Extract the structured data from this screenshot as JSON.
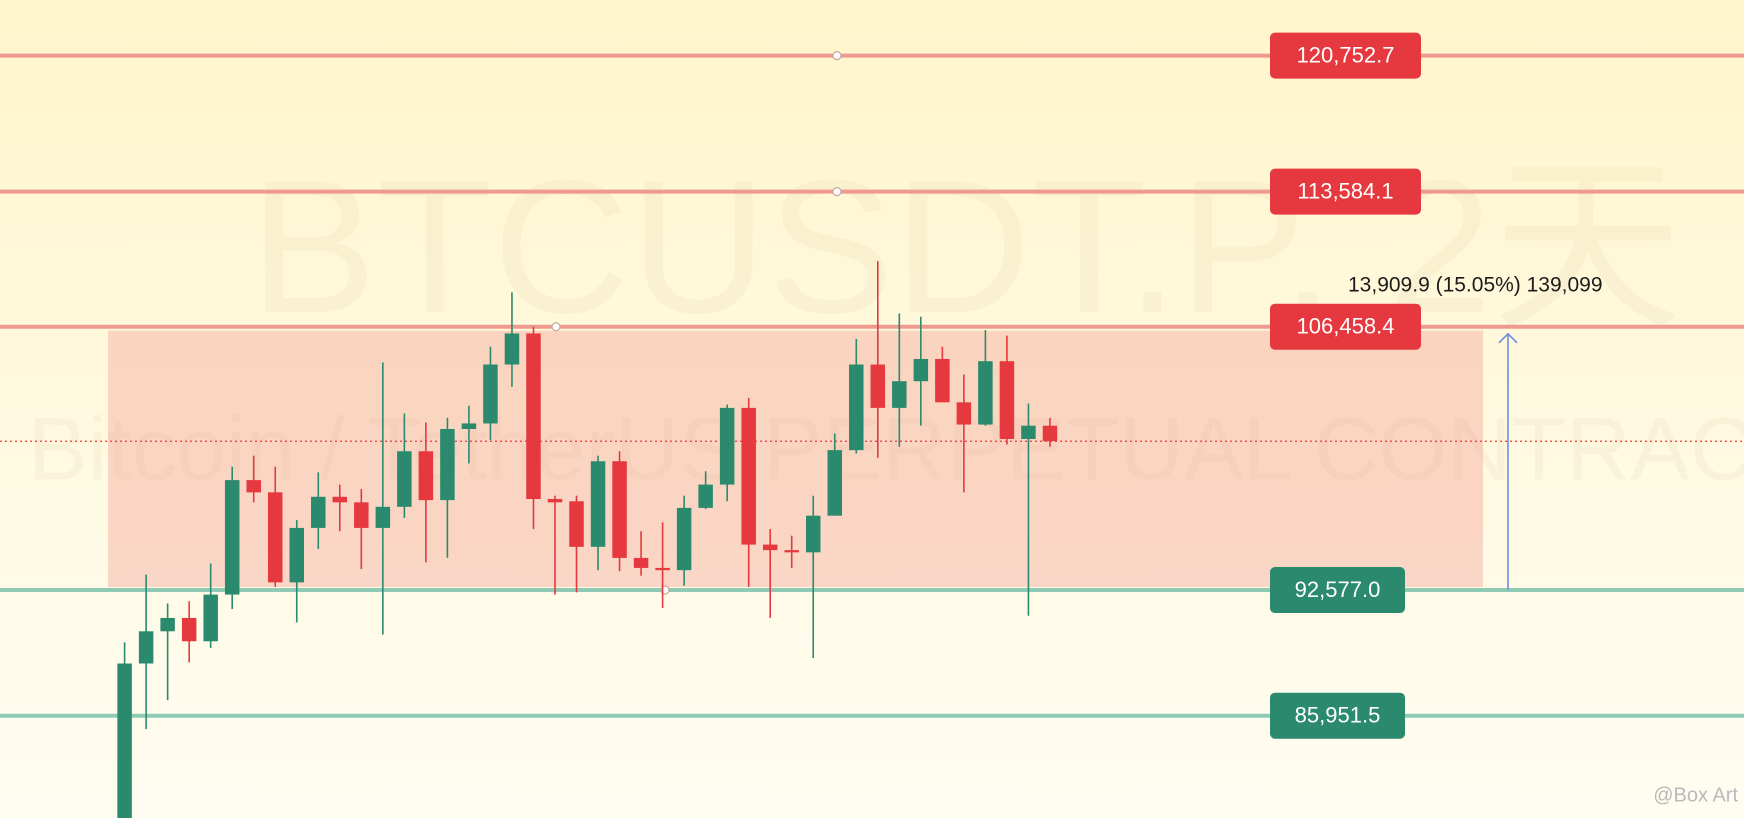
{
  "chart_data": {
    "type": "candlestick",
    "watermark": "BTCUSDT.P, 2天",
    "watermark_subtitle": "Bitcoin / TetherUS PERPETUAL CONTRACT",
    "credit": "@Box Art",
    "ylim": [
      80557,
      123687
    ],
    "up_color": "#2b8a6e",
    "down_color": "#e5393f",
    "open": [
      80557,
      88703,
      90402,
      91105,
      89875,
      92336,
      98372,
      97727,
      92981,
      95852,
      97493,
      97200,
      95852,
      96965,
      99895,
      97317,
      101067,
      101360,
      104466,
      106107,
      97376,
      97258,
      94856,
      99368,
      94270,
      93742,
      93625,
      96907,
      98137,
      102181,
      94973,
      94680,
      94563,
      96497,
      99954,
      104466,
      102181,
      103587,
      104759,
      102474,
      101302,
      104642,
      100540,
      101243
    ],
    "high": [
      89816,
      93391,
      91867,
      91984,
      93977,
      99075,
      99661,
      99075,
      96262,
      98782,
      98137,
      97903,
      104583,
      101888,
      101419,
      101653,
      102298,
      105404,
      108275,
      106459,
      97551,
      97551,
      99661,
      99895,
      95676,
      96145,
      97551,
      98841,
      102357,
      102708,
      95793,
      95442,
      97551,
      100833,
      105814,
      109916,
      107162,
      106986,
      105404,
      103939,
      106283,
      105990,
      102415,
      101653
    ],
    "low": [
      80557,
      85245,
      86769,
      88761,
      89523,
      91574,
      97200,
      92746,
      90871,
      94739,
      95676,
      93684,
      90226,
      96379,
      94035,
      94270,
      99251,
      100481,
      103294,
      95793,
      92336,
      92453,
      93625,
      93567,
      93332,
      91633,
      92805,
      96850,
      97258,
      92746,
      91105,
      93742,
      88996,
      96497,
      99778,
      99544,
      100130,
      101243,
      102474,
      97727,
      101243,
      100247,
      91223,
      100130
    ],
    "close": [
      88703,
      90402,
      91105,
      89875,
      92336,
      98372,
      97727,
      92981,
      95852,
      97493,
      97200,
      95852,
      96965,
      99895,
      97317,
      101067,
      101360,
      104466,
      106107,
      97376,
      97200,
      94856,
      99368,
      94270,
      93742,
      93625,
      96907,
      98137,
      102181,
      94973,
      94680,
      94563,
      96497,
      99954,
      104466,
      102181,
      103587,
      104759,
      102474,
      101302,
      104642,
      100540,
      101243,
      100423
    ],
    "levels": [
      {
        "value": 120752.7,
        "label": "120,752.7",
        "color": "#e5393f"
      },
      {
        "value": 113584.1,
        "label": "113,584.1",
        "color": "#e5393f"
      },
      {
        "value": 106458.4,
        "label": "106,458.4",
        "color": "#e5393f"
      },
      {
        "value": 92577.0,
        "label": "92,577.0",
        "color": "#2b8a6e"
      },
      {
        "value": 85951.5,
        "label": "85,951.5",
        "color": "#2b8a6e"
      }
    ],
    "measure_label": "13,909.9 (15.05%) 139,099"
  }
}
